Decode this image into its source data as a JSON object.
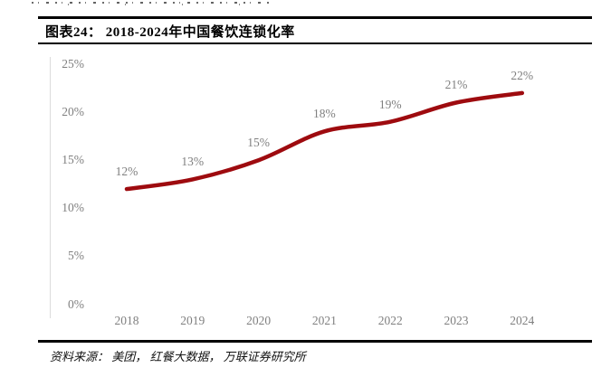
{
  "figure": {
    "title": "图表24： 2018-2024年中国餐饮连锁化率",
    "source": "资料来源： 美团， 红餐大数据， 万联证券研究所"
  },
  "chart_data": {
    "type": "line",
    "title": "2018-2024年中国餐饮连锁化率",
    "categories": [
      "2018",
      "2019",
      "2020",
      "2021",
      "2022",
      "2023",
      "2024"
    ],
    "series": [
      {
        "name": "中国餐饮连锁化率",
        "values": [
          12,
          13,
          15,
          18,
          19,
          21,
          22
        ]
      }
    ],
    "point_labels": [
      "12%",
      "13%",
      "15%",
      "18%",
      "19%",
      "21%",
      "22%"
    ],
    "y_tick_labels": [
      "0%",
      "5%",
      "10%",
      "15%",
      "20%",
      "25%"
    ],
    "y_tick_values": [
      0,
      5,
      10,
      15,
      20,
      25
    ],
    "ylim": [
      0,
      25
    ],
    "xlabel": "",
    "ylabel": "",
    "grid": false,
    "legend": "none",
    "line_color": "#9E0B0F",
    "label_color": "#7F7F7F"
  }
}
